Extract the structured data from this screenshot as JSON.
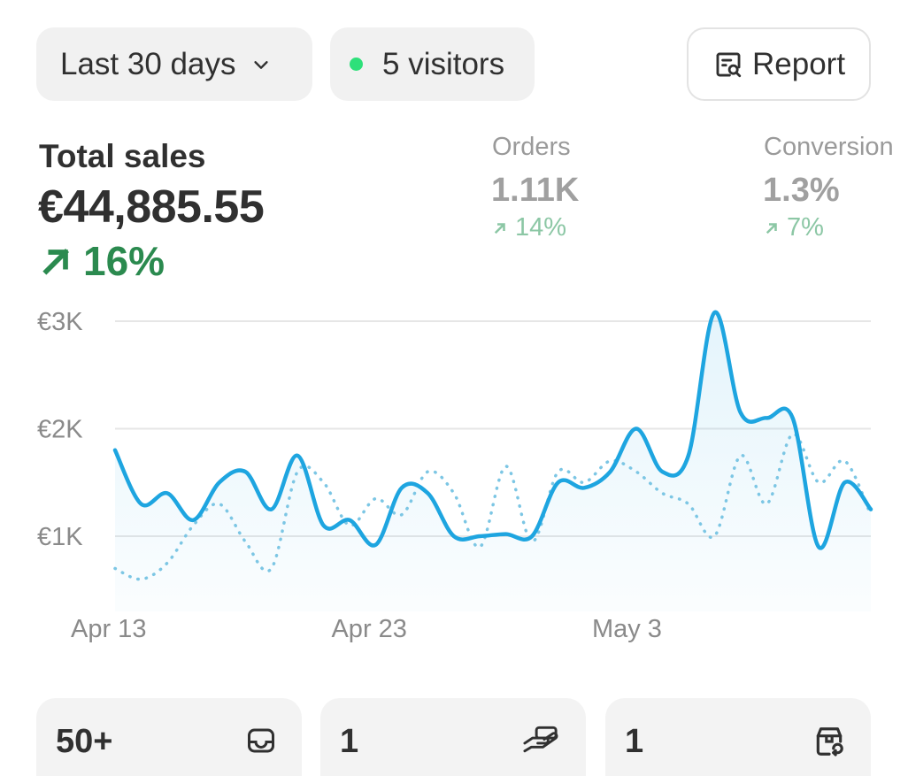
{
  "header": {
    "range_label": "Last 30 days",
    "range_icon": "chevron-down-icon",
    "visitors_label": "5 visitors",
    "live_dot_color": "#2ee07a",
    "report_label": "Report",
    "report_icon": "report-search-icon"
  },
  "metrics": {
    "total_sales": {
      "title": "Total sales",
      "value": "€44,885.55",
      "delta": "16%",
      "trend": "up",
      "color": "#2b8a4f"
    },
    "orders": {
      "title": "Orders",
      "value": "1.11K",
      "delta": "14%",
      "trend": "up"
    },
    "conversion": {
      "title": "Conversion",
      "value": "1.3%",
      "delta": "7%",
      "trend": "up"
    }
  },
  "chart_data": {
    "type": "line",
    "x_labels": [
      "Apr 13",
      "Apr 23",
      "May 3"
    ],
    "y_ticks": [
      "€1K",
      "€2K",
      "€3K"
    ],
    "ylim": [
      0,
      3000
    ],
    "grid": true,
    "colors": {
      "current": "#1ea5e0",
      "previous": "#7cc6e4"
    },
    "series": [
      {
        "line_style": "solid",
        "values": [
          1800,
          1300,
          1400,
          1150,
          1500,
          1600,
          1250,
          1750,
          1100,
          1150,
          920,
          1450,
          1400,
          1000,
          1000,
          1020,
          1000,
          1500,
          1450,
          1600,
          2000,
          1600,
          1750,
          3080,
          2150,
          2100,
          2100,
          900,
          1500,
          1250
        ]
      },
      {
        "line_style": "dotted",
        "values": [
          700,
          600,
          750,
          1100,
          1300,
          950,
          700,
          1600,
          1500,
          1100,
          1350,
          1200,
          1600,
          1400,
          900,
          1650,
          950,
          1600,
          1500,
          1700,
          1600,
          1400,
          1300,
          1000,
          1750,
          1300,
          1950,
          1500,
          1700,
          1200
        ]
      }
    ]
  },
  "cards": [
    {
      "value": "50+",
      "icon": "inbox-tray-icon"
    },
    {
      "value": "1",
      "icon": "hand-payment-icon"
    },
    {
      "value": "1",
      "icon": "package-return-icon"
    }
  ]
}
